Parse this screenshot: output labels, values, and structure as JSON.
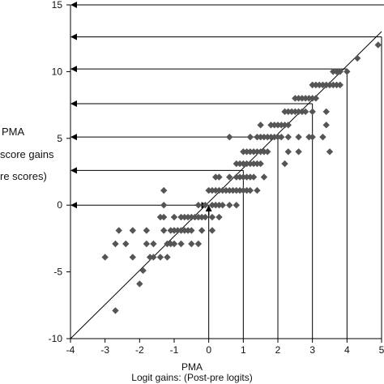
{
  "chart_data": {
    "type": "scatter",
    "x_label_lines": [
      "PMA",
      "Logit gains:  (Post-pre logits)"
    ],
    "y_label_lines": [
      "PMA",
      "score gains",
      "re scores)"
    ],
    "xlim": [
      -4,
      5
    ],
    "ylim": [
      -10,
      15
    ],
    "x_ticks": [
      -4,
      -3,
      -2,
      -1,
      0,
      1,
      2,
      3,
      4,
      5
    ],
    "y_ticks": [
      -10,
      -5,
      0,
      5,
      10,
      15
    ],
    "grid": false,
    "legend": "none",
    "marker": "diamond",
    "marker_color": "#555555",
    "line_color": "#000000",
    "diagonal": [
      [
        -4,
        -10
      ],
      [
        5,
        13
      ]
    ],
    "projection_lines": [
      {
        "x": 0,
        "y": 0
      },
      {
        "x": 1,
        "y": 2.6
      },
      {
        "x": 2,
        "y": 5.1
      },
      {
        "x": 3,
        "y": 7.6
      },
      {
        "x": 4,
        "y": 10.2
      },
      {
        "x": 5,
        "y": 12.6
      },
      {
        "x": 5.3,
        "y": 15
      }
    ],
    "points": [
      [
        -2.7,
        -7.9
      ],
      [
        -2.0,
        -5.9
      ],
      [
        -1.9,
        -4.9
      ],
      [
        -3.0,
        -3.9
      ],
      [
        -2.2,
        -3.9
      ],
      [
        -1.7,
        -3.9
      ],
      [
        -1.6,
        -3.9
      ],
      [
        -1.4,
        -3.9
      ],
      [
        -1.2,
        -3.9
      ],
      [
        -2.7,
        -2.9
      ],
      [
        -2.4,
        -2.9
      ],
      [
        -1.8,
        -2.9
      ],
      [
        -1.6,
        -2.9
      ],
      [
        -1.2,
        -2.9
      ],
      [
        -1.1,
        -2.9
      ],
      [
        -1.0,
        -2.9
      ],
      [
        -0.8,
        -2.9
      ],
      [
        -0.5,
        -2.9
      ],
      [
        -0.3,
        -2.9
      ],
      [
        -2.6,
        -1.9
      ],
      [
        -2.2,
        -1.9
      ],
      [
        -1.8,
        -1.9
      ],
      [
        -1.3,
        -1.9
      ],
      [
        -1.1,
        -1.9
      ],
      [
        -1.0,
        -1.9
      ],
      [
        -0.9,
        -1.9
      ],
      [
        -0.8,
        -1.9
      ],
      [
        -0.7,
        -1.9
      ],
      [
        -0.6,
        -1.9
      ],
      [
        -0.5,
        -1.9
      ],
      [
        -0.2,
        -1.9
      ],
      [
        0.1,
        -1.9
      ],
      [
        -1.4,
        -0.9
      ],
      [
        -1.3,
        -0.9
      ],
      [
        -1.0,
        -0.9
      ],
      [
        -0.8,
        -0.9
      ],
      [
        -0.7,
        -0.9
      ],
      [
        -0.6,
        -0.9
      ],
      [
        -0.5,
        -0.9
      ],
      [
        -0.4,
        -0.9
      ],
      [
        -0.3,
        -0.9
      ],
      [
        -0.2,
        -0.9
      ],
      [
        -0.1,
        -0.9
      ],
      [
        0.1,
        -0.9
      ],
      [
        0.3,
        -0.9
      ],
      [
        -1.3,
        0.0
      ],
      [
        -0.3,
        0.0
      ],
      [
        -0.1,
        0.0
      ],
      [
        0.1,
        0.0
      ],
      [
        0.2,
        0.0
      ],
      [
        0.3,
        0.0
      ],
      [
        0.4,
        0.0
      ],
      [
        0.6,
        0.0
      ],
      [
        0.8,
        0.0
      ],
      [
        -1.3,
        1.1
      ],
      [
        0.0,
        1.1
      ],
      [
        0.1,
        1.1
      ],
      [
        0.2,
        1.1
      ],
      [
        0.3,
        1.1
      ],
      [
        0.4,
        1.1
      ],
      [
        0.5,
        1.1
      ],
      [
        0.6,
        1.1
      ],
      [
        0.7,
        1.1
      ],
      [
        0.8,
        1.1
      ],
      [
        0.9,
        1.1
      ],
      [
        1.0,
        1.1
      ],
      [
        1.1,
        1.1
      ],
      [
        1.2,
        1.1
      ],
      [
        1.4,
        1.1
      ],
      [
        0.2,
        2.1
      ],
      [
        0.3,
        2.1
      ],
      [
        0.6,
        2.1
      ],
      [
        0.8,
        2.1
      ],
      [
        0.9,
        2.1
      ],
      [
        1.0,
        2.1
      ],
      [
        1.1,
        2.1
      ],
      [
        1.2,
        2.1
      ],
      [
        1.3,
        2.1
      ],
      [
        1.6,
        2.1
      ],
      [
        0.8,
        3.1
      ],
      [
        0.9,
        3.1
      ],
      [
        1.0,
        3.1
      ],
      [
        1.1,
        3.1
      ],
      [
        1.2,
        3.1
      ],
      [
        1.3,
        3.1
      ],
      [
        1.4,
        3.1
      ],
      [
        1.5,
        3.1
      ],
      [
        2.2,
        3.1
      ],
      [
        1.0,
        4.0
      ],
      [
        1.1,
        4.0
      ],
      [
        1.2,
        4.0
      ],
      [
        1.3,
        4.0
      ],
      [
        1.4,
        4.0
      ],
      [
        1.5,
        4.0
      ],
      [
        1.6,
        4.0
      ],
      [
        1.7,
        4.0
      ],
      [
        2.3,
        4.0
      ],
      [
        2.6,
        4.0
      ],
      [
        3.5,
        4.0
      ],
      [
        0.6,
        5.1
      ],
      [
        1.2,
        5.1
      ],
      [
        1.4,
        5.1
      ],
      [
        1.5,
        5.1
      ],
      [
        1.6,
        5.1
      ],
      [
        1.7,
        5.1
      ],
      [
        1.8,
        5.1
      ],
      [
        1.9,
        5.1
      ],
      [
        2.0,
        5.1
      ],
      [
        2.1,
        5.1
      ],
      [
        2.3,
        5.1
      ],
      [
        2.6,
        5.1
      ],
      [
        2.9,
        5.1
      ],
      [
        3.0,
        5.1
      ],
      [
        3.3,
        5.1
      ],
      [
        1.5,
        6.0
      ],
      [
        1.8,
        6.0
      ],
      [
        1.9,
        6.0
      ],
      [
        2.0,
        6.0
      ],
      [
        2.1,
        6.0
      ],
      [
        2.2,
        6.0
      ],
      [
        2.3,
        6.0
      ],
      [
        3.4,
        6.0
      ],
      [
        2.2,
        7.0
      ],
      [
        2.3,
        7.0
      ],
      [
        2.4,
        7.0
      ],
      [
        2.5,
        7.0
      ],
      [
        2.6,
        7.0
      ],
      [
        2.7,
        7.0
      ],
      [
        2.8,
        7.0
      ],
      [
        3.0,
        7.0
      ],
      [
        3.4,
        7.0
      ],
      [
        2.5,
        8.0
      ],
      [
        2.6,
        8.0
      ],
      [
        2.7,
        8.0
      ],
      [
        2.8,
        8.0
      ],
      [
        2.9,
        8.0
      ],
      [
        3.0,
        8.0
      ],
      [
        3.1,
        8.0
      ],
      [
        3.0,
        9.0
      ],
      [
        3.1,
        9.0
      ],
      [
        3.2,
        9.0
      ],
      [
        3.3,
        9.0
      ],
      [
        3.4,
        9.0
      ],
      [
        3.5,
        9.0
      ],
      [
        3.6,
        9.0
      ],
      [
        3.7,
        9.0
      ],
      [
        3.8,
        9.0
      ],
      [
        3.6,
        10.0
      ],
      [
        3.7,
        10.0
      ],
      [
        3.8,
        10.0
      ],
      [
        4.0,
        10.0
      ],
      [
        4.3,
        11.0
      ],
      [
        4.9,
        12.0
      ]
    ]
  }
}
